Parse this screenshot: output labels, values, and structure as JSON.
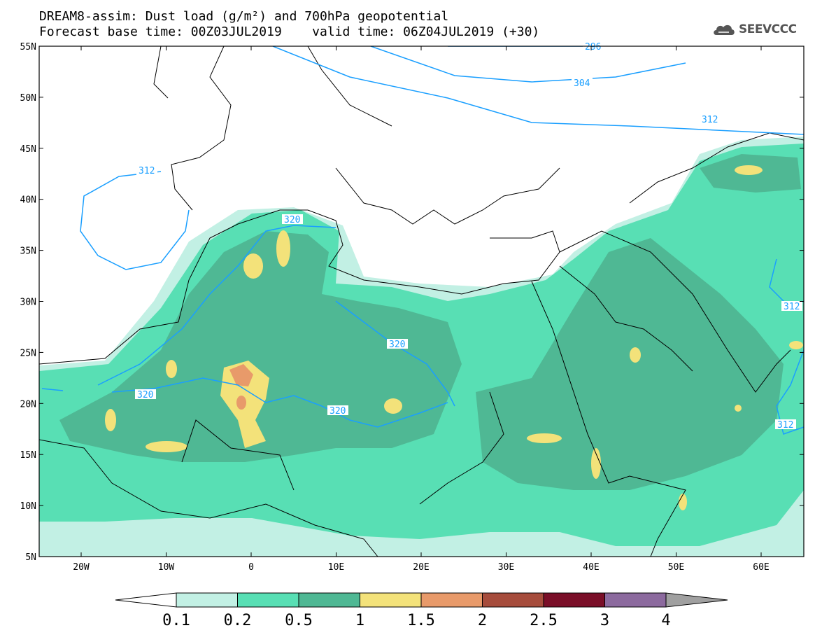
{
  "header": {
    "title_line1": "DREAM8-assim: Dust load (g/m²) and 700hPa geopotential",
    "base_time": "Forecast base time: 00Z03JUL2019",
    "valid_time": "valid time: 06Z04JUL2019 (+30)"
  },
  "logo": {
    "text": "SEEVCCC"
  },
  "map": {
    "lat_labels": [
      "55N",
      "50N",
      "45N",
      "40N",
      "35N",
      "30N",
      "25N",
      "20N",
      "15N",
      "10N",
      "5N"
    ],
    "lon_labels": [
      "20W",
      "10W",
      "0",
      "10E",
      "20E",
      "30E",
      "40E",
      "50E",
      "60E"
    ],
    "contour_labels": [
      "296",
      "304",
      "312",
      "312",
      "320",
      "320",
      "320",
      "320",
      "312",
      "312"
    ]
  },
  "legend": {
    "colors": [
      "#c2f0e4",
      "#58dfb4",
      "#4fb894",
      "#f3e27a",
      "#e89a6a",
      "#a64c3c",
      "#7a0e28",
      "#8c6a9e",
      "#a0a0a0"
    ],
    "labels": [
      "0.1",
      "0.2",
      "0.5",
      "1",
      "1.5",
      "2",
      "2.5",
      "3",
      "4"
    ]
  }
}
